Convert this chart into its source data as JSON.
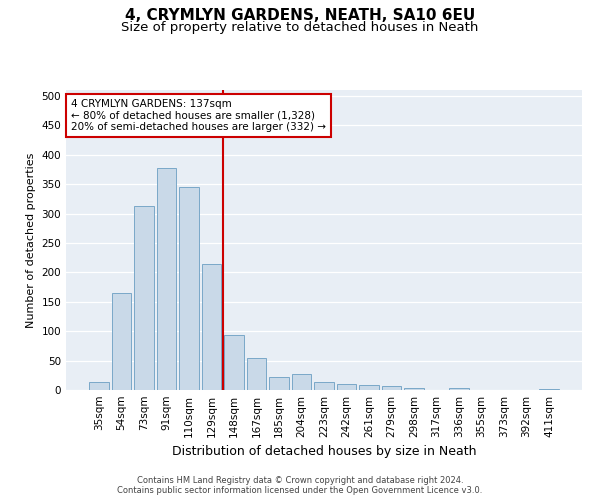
{
  "title": "4, CRYMLYN GARDENS, NEATH, SA10 6EU",
  "subtitle": "Size of property relative to detached houses in Neath",
  "xlabel": "Distribution of detached houses by size in Neath",
  "ylabel": "Number of detached properties",
  "categories": [
    "35sqm",
    "54sqm",
    "73sqm",
    "91sqm",
    "110sqm",
    "129sqm",
    "148sqm",
    "167sqm",
    "185sqm",
    "204sqm",
    "223sqm",
    "242sqm",
    "261sqm",
    "279sqm",
    "298sqm",
    "317sqm",
    "336sqm",
    "355sqm",
    "373sqm",
    "392sqm",
    "411sqm"
  ],
  "values": [
    13,
    165,
    312,
    378,
    345,
    215,
    93,
    55,
    22,
    27,
    13,
    10,
    8,
    6,
    4,
    0,
    3,
    0,
    0,
    0,
    2
  ],
  "bar_color": "#c9d9e8",
  "bar_edgecolor": "#7aa8c8",
  "vline_x": 5.5,
  "vline_color": "#cc0000",
  "annotation_line1": "4 CRYMLYN GARDENS: 137sqm",
  "annotation_line2": "← 80% of detached houses are smaller (1,328)",
  "annotation_line3": "20% of semi-detached houses are larger (332) →",
  "annotation_box_color": "#cc0000",
  "ylim": [
    0,
    510
  ],
  "yticks": [
    0,
    50,
    100,
    150,
    200,
    250,
    300,
    350,
    400,
    450,
    500
  ],
  "background_color": "#e8eef5",
  "footer_line1": "Contains HM Land Registry data © Crown copyright and database right 2024.",
  "footer_line2": "Contains public sector information licensed under the Open Government Licence v3.0.",
  "title_fontsize": 11,
  "subtitle_fontsize": 9.5,
  "xlabel_fontsize": 9,
  "ylabel_fontsize": 8,
  "tick_fontsize": 7.5,
  "annotation_fontsize": 7.5
}
